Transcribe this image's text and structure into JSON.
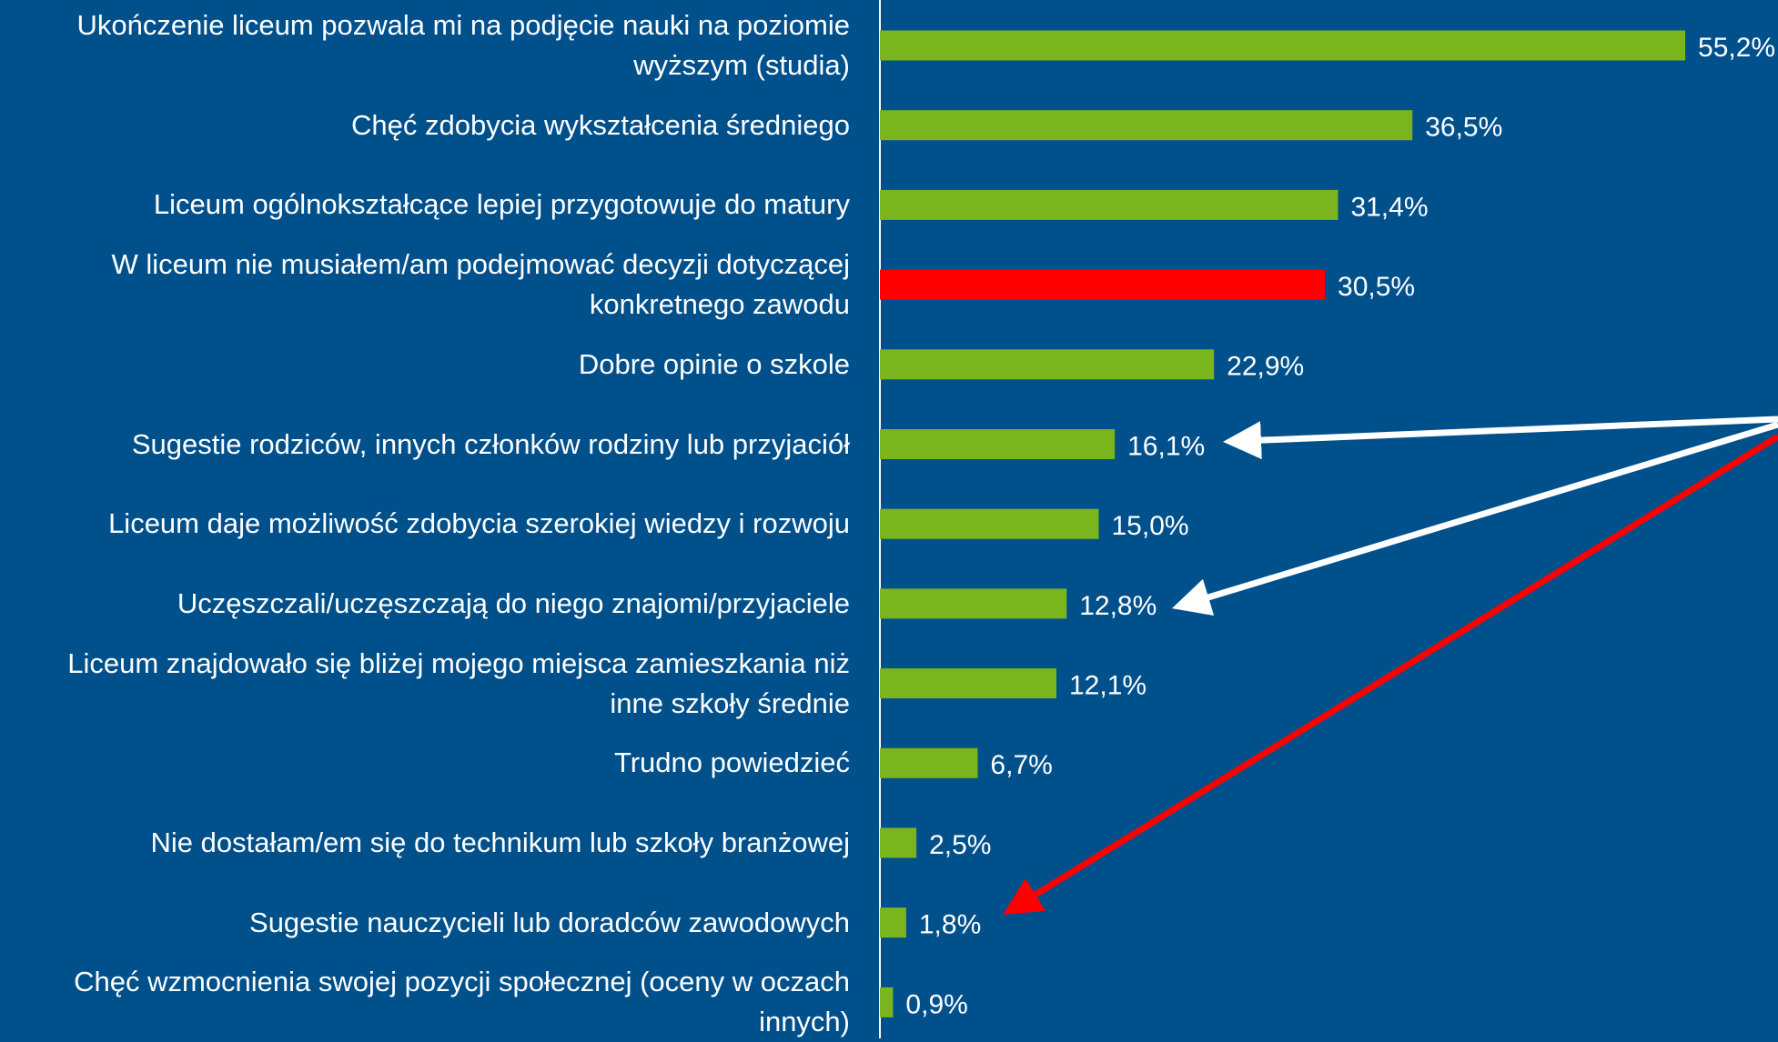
{
  "chart_data": {
    "type": "bar",
    "orientation": "horizontal",
    "categories": [
      "Ukończenie liceum pozwala mi na podjęcie nauki na poziomie wyższym (studia)",
      "Chęć zdobycia wykształcenia średniego",
      "Liceum ogólnokształcące lepiej przygotowuje do matury",
      "W liceum nie musiałem/am podejmować decyzji dotyczącej konkretnego zawodu",
      "Dobre opinie o szkole",
      "Sugestie rodziców, innych członków rodziny lub przyjaciół",
      "Liceum daje możliwość zdobycia szerokiej wiedzy i rozwoju",
      "Uczęszczali/uczęszczają do niego znajomi/przyjaciele",
      "Liceum znajdowało się bliżej mojego miejsca zamieszkania niż inne szkoły średnie",
      "Trudno powiedzieć",
      "Nie dostałam/em się do technikum lub szkoły branżowej",
      "Sugestie nauczycieli lub doradców zawodowych",
      "Chęć wzmocnienia swojej pozycji społecznej (oceny w oczach innych)"
    ],
    "values": [
      55.2,
      36.5,
      31.4,
      30.5,
      22.9,
      16.1,
      15.0,
      12.8,
      12.1,
      6.7,
      2.5,
      1.8,
      0.9
    ],
    "value_labels": [
      "55,2%",
      "36,5%",
      "31,4%",
      "30,5%",
      "22,9%",
      "16,1%",
      "15,0%",
      "12,8%",
      "12,1%",
      "6,7%",
      "2,5%",
      "1,8%",
      "0,9%"
    ],
    "colors": [
      "#7ab51d",
      "#7ab51d",
      "#7ab51d",
      "#ff0000",
      "#7ab51d",
      "#7ab51d",
      "#7ab51d",
      "#7ab51d",
      "#7ab51d",
      "#7ab51d",
      "#7ab51d",
      "#7ab51d",
      "#7ab51d"
    ],
    "xlim": [
      0,
      60
    ]
  }
}
